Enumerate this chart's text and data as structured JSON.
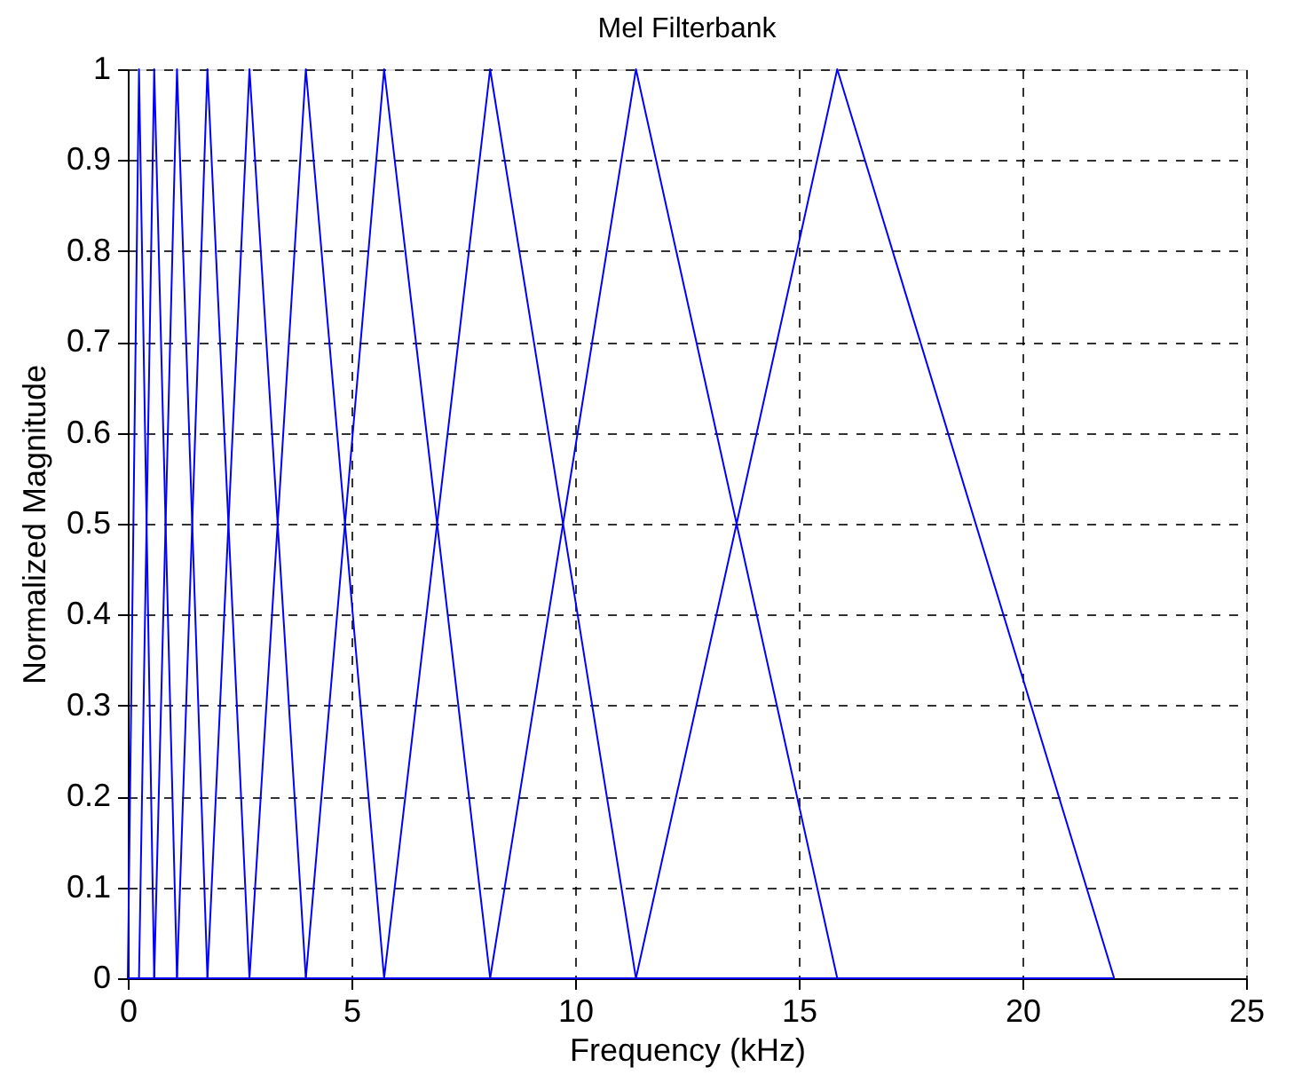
{
  "chart_data": {
    "type": "line",
    "title": "Mel Filterbank",
    "xlabel": "Frequency (kHz)",
    "ylabel": "Normalized Magnitude",
    "xlim": [
      0,
      25
    ],
    "xticks": [
      0,
      5,
      10,
      15,
      20,
      25
    ],
    "ylim": [
      0,
      1
    ],
    "yticks": [
      0,
      0.1,
      0.2,
      0.3,
      0.4,
      0.5,
      0.6,
      0.7,
      0.8,
      0.9,
      1
    ],
    "grid": true,
    "legend": false,
    "marker": "none",
    "line_style": "solid",
    "series": [
      {
        "color": "#0000ff",
        "x": [
          0,
          0.25,
          0.59,
          22.05
        ],
        "values": [
          0,
          1,
          0,
          0
        ]
      },
      {
        "color": "#0000ff",
        "x": [
          0,
          0.25,
          0.59,
          1.1,
          22.05
        ],
        "values": [
          0,
          0,
          1,
          0,
          0
        ]
      },
      {
        "color": "#0000ff",
        "x": [
          0,
          0.59,
          1.1,
          1.78,
          22.05
        ],
        "values": [
          0,
          0,
          1,
          0,
          0
        ]
      },
      {
        "color": "#0000ff",
        "x": [
          0,
          1.1,
          1.78,
          2.72,
          22.05
        ],
        "values": [
          0,
          0,
          1,
          0,
          0
        ]
      },
      {
        "color": "#0000ff",
        "x": [
          0,
          1.78,
          2.72,
          3.98,
          22.05
        ],
        "values": [
          0,
          0,
          1,
          0,
          0
        ]
      },
      {
        "color": "#0000ff",
        "x": [
          0,
          2.72,
          3.98,
          5.73,
          22.05
        ],
        "values": [
          0,
          0,
          1,
          0,
          0
        ]
      },
      {
        "color": "#0000ff",
        "x": [
          0,
          3.98,
          5.73,
          8.1,
          22.05
        ],
        "values": [
          0,
          0,
          1,
          0,
          0
        ]
      },
      {
        "color": "#0000ff",
        "x": [
          0,
          5.73,
          8.1,
          11.36,
          22.05
        ],
        "values": [
          0,
          0,
          1,
          0,
          0
        ]
      },
      {
        "color": "#0000ff",
        "x": [
          0,
          8.1,
          11.36,
          15.86,
          22.05
        ],
        "values": [
          0,
          0,
          1,
          0,
          0
        ]
      },
      {
        "color": "#0000ff",
        "x": [
          0,
          11.36,
          15.86,
          22.05
        ],
        "values": [
          0,
          0,
          1,
          0
        ]
      }
    ]
  }
}
